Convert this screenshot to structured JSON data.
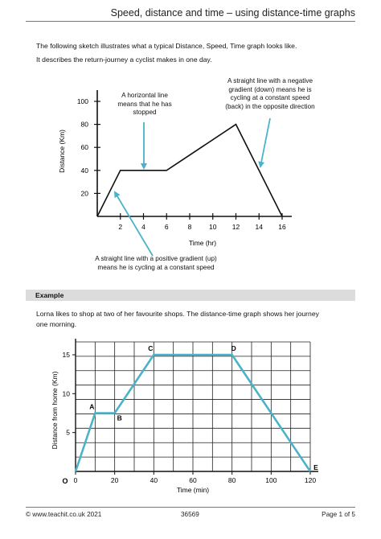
{
  "header": {
    "title": "Speed, distance and time – using distance-time graphs"
  },
  "intro": {
    "line1": "The following sketch illustrates what a typical Distance, Speed, Time graph looks like.",
    "line2": "It describes the return-journey a cyclist makes in one day."
  },
  "annotations": {
    "horizontal": [
      "A horizontal line",
      "means that he has",
      "stopped"
    ],
    "negative": [
      "A straight line with a negative",
      "gradient (down) means he is",
      "cycling at a constant speed",
      "(back) in the opposite direction"
    ],
    "positive": [
      "A straight line with a positive gradient (up)",
      "means he is cycling at a constant speed"
    ]
  },
  "example": {
    "heading": "Example",
    "text1": "Lorna likes to shop at two of her favourite shops. The distance-time graph shows her journey",
    "text2": "one morning."
  },
  "footer": {
    "left": "© www.teachit.co.uk 2021",
    "center": "36569",
    "right": "Page 1 of 5"
  },
  "chart_data": [
    {
      "type": "line",
      "xlabel": "Time (hr)",
      "ylabel": "Distance (Km)",
      "xticks": [
        2,
        4,
        6,
        8,
        10,
        12,
        14,
        16
      ],
      "yticks": [
        20,
        40,
        60,
        80,
        100
      ],
      "xlim": [
        0,
        16
      ],
      "ylim": [
        0,
        100
      ],
      "grid": false,
      "x": [
        0,
        2,
        6,
        12,
        16
      ],
      "y": [
        0,
        40,
        40,
        80,
        0
      ],
      "color": "#111111"
    },
    {
      "type": "line",
      "xlabel": "Time (min)",
      "ylabel": "Distance from home (Km)",
      "xticks": [
        0,
        20,
        40,
        60,
        80,
        100,
        120
      ],
      "yticks": [
        5,
        10,
        15
      ],
      "origin_label": "O",
      "xlim": [
        0,
        120
      ],
      "ylim": [
        0,
        15
      ],
      "grid": true,
      "x": [
        0,
        10,
        20,
        40,
        80,
        120
      ],
      "y": [
        0,
        7.5,
        7.5,
        15,
        15,
        0
      ],
      "point_labels": [
        "",
        "A",
        "B",
        "C",
        "D",
        "E"
      ],
      "color": "#4bb3c9"
    }
  ]
}
